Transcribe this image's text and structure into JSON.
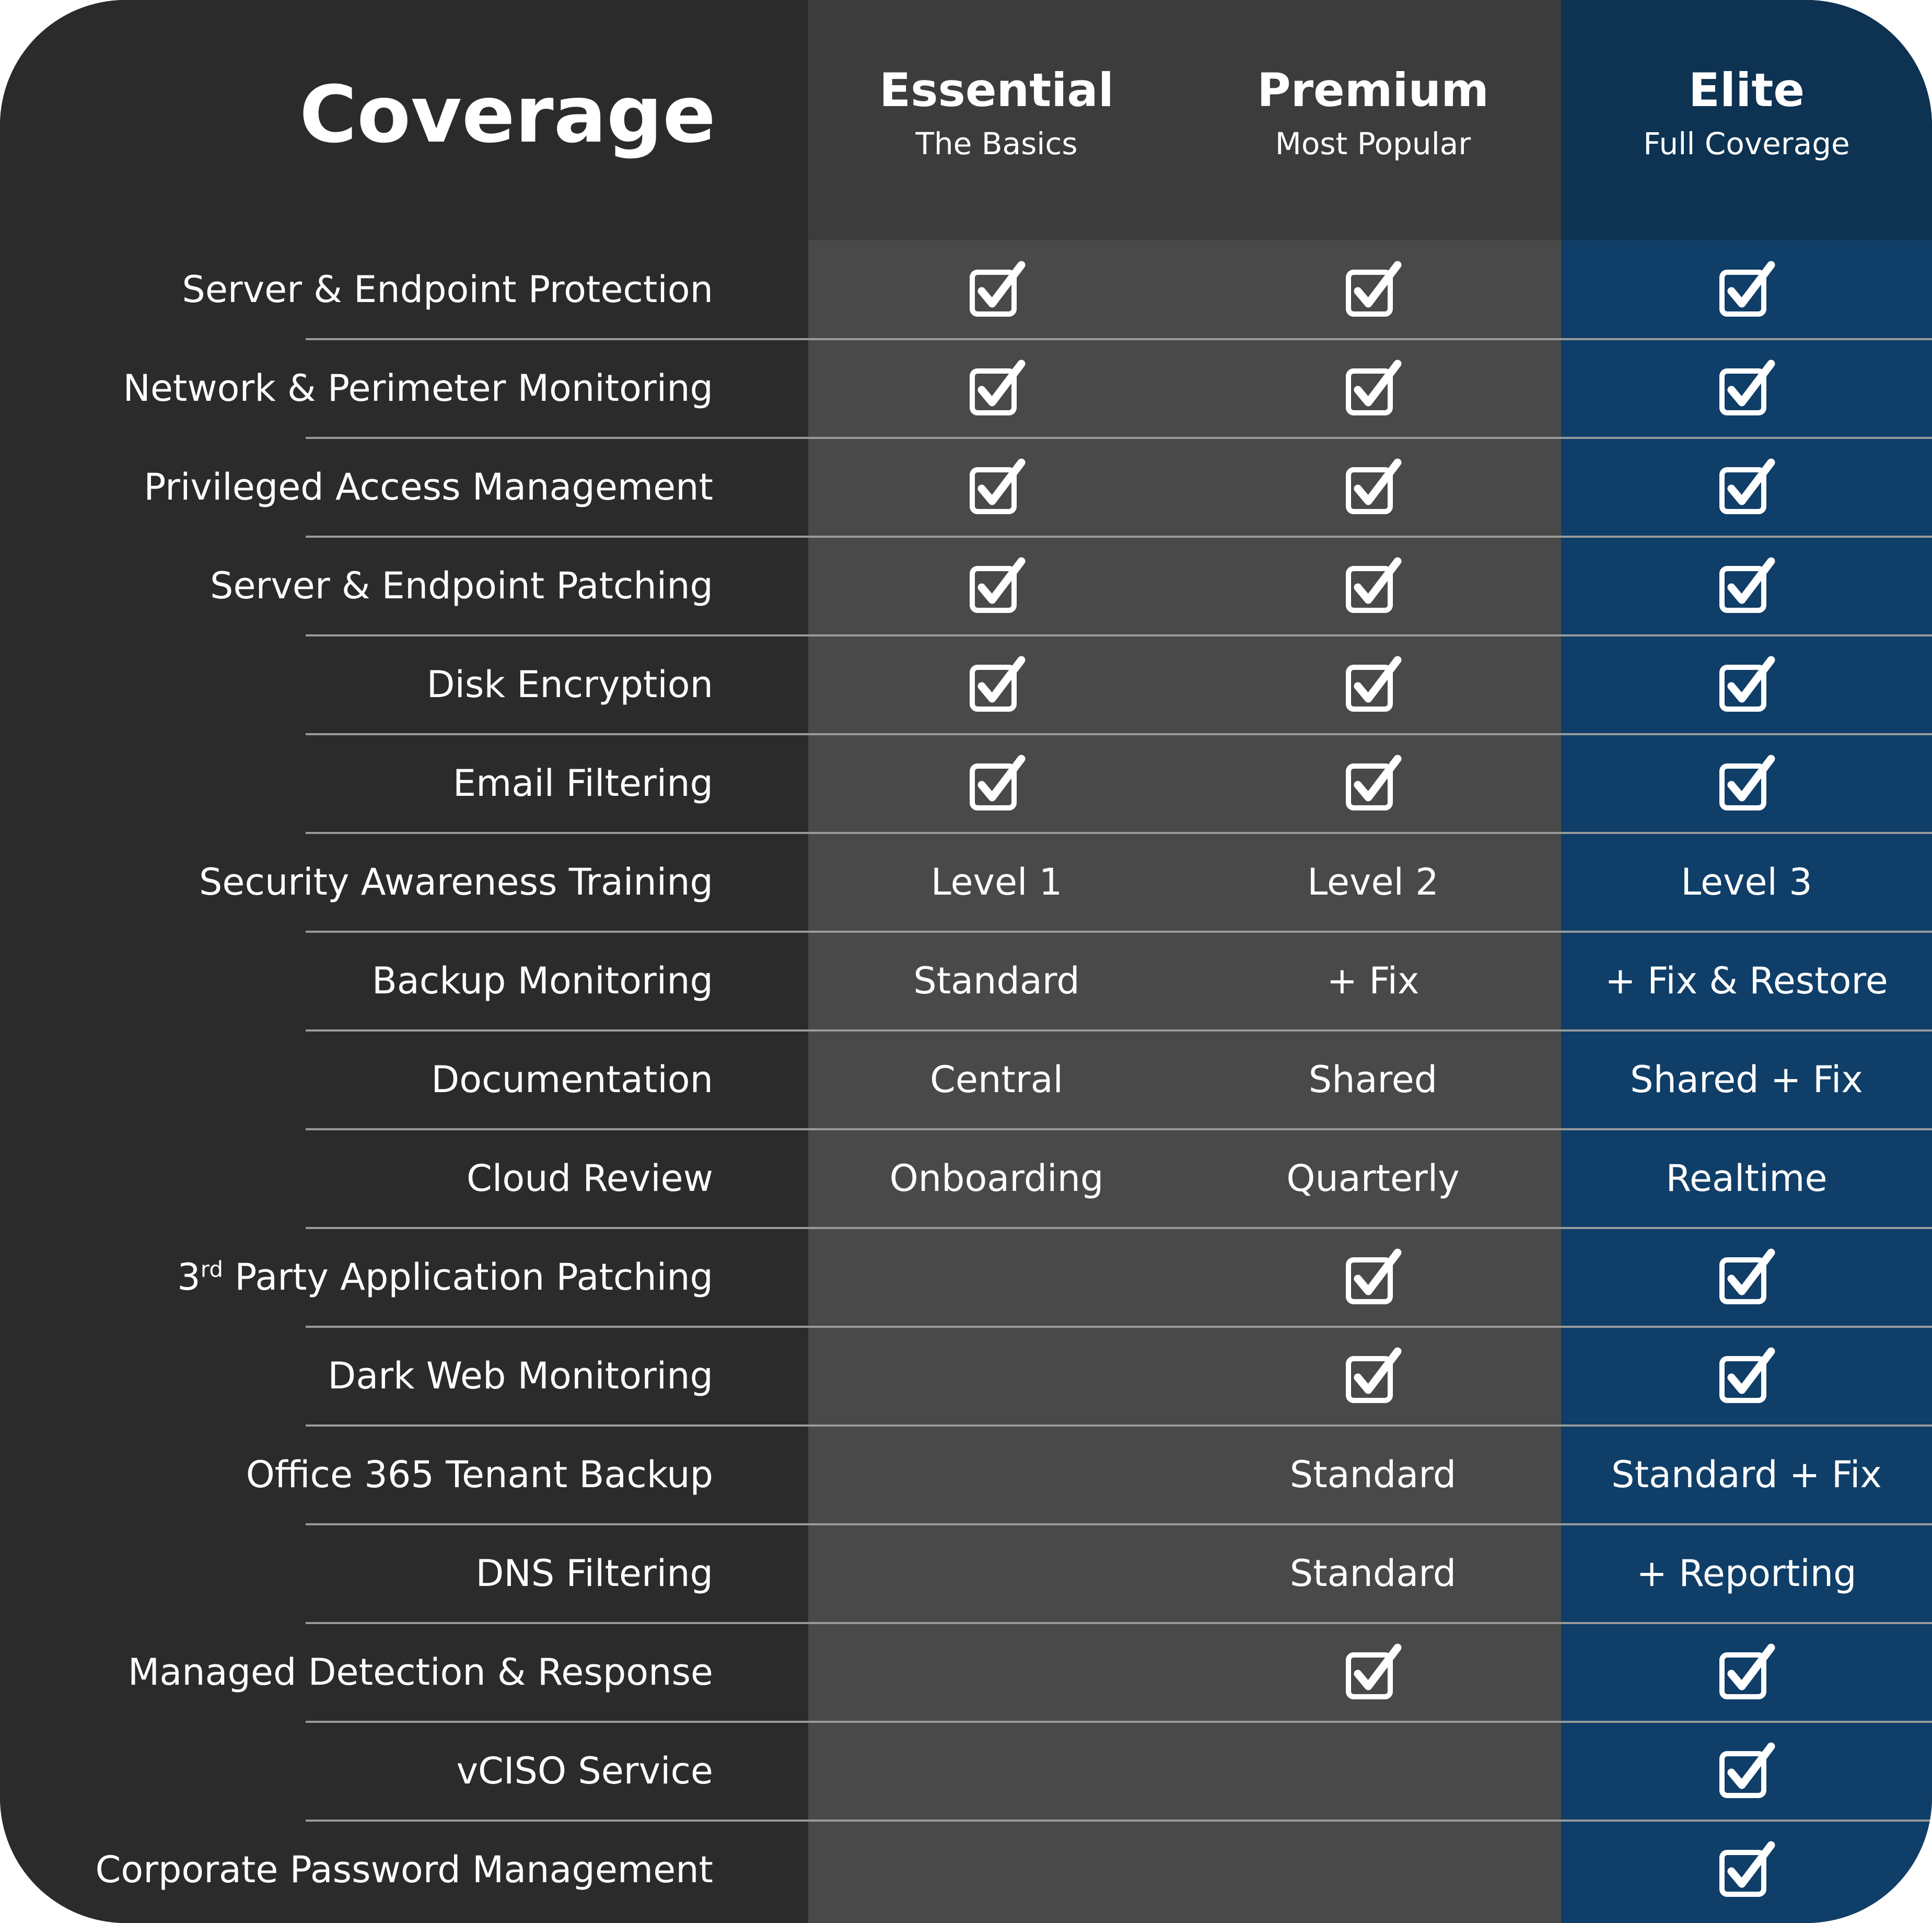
{
  "header": {
    "title": "Coverage",
    "plans": [
      {
        "name": "Essential",
        "subtitle": "The Basics"
      },
      {
        "name": "Premium",
        "subtitle": "Most Popular"
      },
      {
        "name": "Elite",
        "subtitle": "Full Coverage"
      }
    ]
  },
  "icons": {
    "included": "checkbox-check-icon"
  },
  "colors": {
    "label_column": "#2b2b2b",
    "plan_column": "#494949",
    "plan_header": "#3c3c3c",
    "elite_column": "#0f3e68",
    "elite_header": "#0d3252",
    "divider": "#9a9a9a",
    "text": "#ffffff"
  },
  "rows": [
    {
      "feature": "Server & Endpoint Protection",
      "essential": "✓",
      "premium": "✓",
      "elite": "✓"
    },
    {
      "feature": "Network & Perimeter Monitoring",
      "essential": "✓",
      "premium": "✓",
      "elite": "✓"
    },
    {
      "feature": "Privileged Access Management",
      "essential": "✓",
      "premium": "✓",
      "elite": "✓"
    },
    {
      "feature": "Server & Endpoint Patching",
      "essential": "✓",
      "premium": "✓",
      "elite": "✓"
    },
    {
      "feature": "Disk Encryption",
      "essential": "✓",
      "premium": "✓",
      "elite": "✓"
    },
    {
      "feature": "Email Filtering",
      "essential": "✓",
      "premium": "✓",
      "elite": "✓"
    },
    {
      "feature": "Security Awareness Training",
      "essential": "Level 1",
      "premium": "Level 2",
      "elite": "Level 3"
    },
    {
      "feature": "Backup Monitoring",
      "essential": "Standard",
      "premium": "+ Fix",
      "elite": "+ Fix & Restore"
    },
    {
      "feature": "Documentation",
      "essential": "Central",
      "premium": "Shared",
      "elite": "Shared + Fix"
    },
    {
      "feature": "Cloud Review",
      "essential": "Onboarding",
      "premium": "Quarterly",
      "elite": "Realtime"
    },
    {
      "feature": "3",
      "feature_sup": "rd",
      "feature_rest": " Party Application Patching",
      "essential": "",
      "premium": "✓",
      "elite": "✓"
    },
    {
      "feature": "Dark Web Monitoring",
      "essential": "",
      "premium": "✓",
      "elite": "✓"
    },
    {
      "feature": "Office 365 Tenant Backup",
      "essential": "",
      "premium": "Standard",
      "elite": "Standard + Fix"
    },
    {
      "feature": "DNS Filtering",
      "essential": "",
      "premium": "Standard",
      "elite": "+ Reporting"
    },
    {
      "feature": "Managed Detection & Response",
      "essential": "",
      "premium": "✓",
      "elite": "✓"
    },
    {
      "feature": "vCISO Service",
      "essential": "",
      "premium": "",
      "elite": "✓"
    },
    {
      "feature": "Corporate Password Management",
      "essential": "",
      "premium": "",
      "elite": "✓"
    }
  ]
}
